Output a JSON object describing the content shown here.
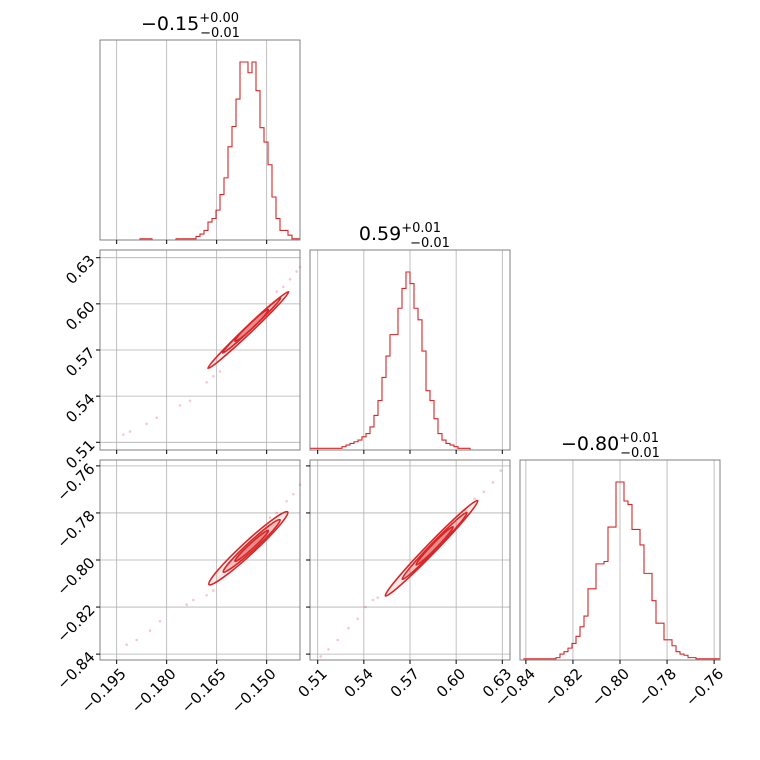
{
  "colors": {
    "line": "#d62728",
    "grid": "#b0b0b0",
    "frame": "#808080"
  },
  "chart_data": {
    "type": "corner",
    "parameters": [
      {
        "range": [
          -0.2,
          -0.14
        ],
        "ticks": [
          -0.195,
          -0.18,
          -0.165,
          -0.15
        ],
        "tick_labels": [
          "−0.195",
          "−0.180",
          "−0.165",
          "−0.150"
        ]
      },
      {
        "range": [
          0.505,
          0.635
        ],
        "ticks": [
          0.51,
          0.54,
          0.57,
          0.6,
          0.63
        ],
        "tick_labels": [
          "0.51",
          "0.54",
          "0.57",
          "0.60",
          "0.63"
        ]
      },
      {
        "range": [
          -0.8425,
          -0.7575
        ],
        "ticks": [
          -0.84,
          -0.82,
          -0.8,
          -0.78,
          -0.76
        ],
        "tick_labels": [
          "−0.84",
          "−0.82",
          "−0.80",
          "−0.78",
          "−0.76"
        ]
      }
    ],
    "titles": [
      {
        "value": "−0.15",
        "upper": "+0.00",
        "lower": "−0.01"
      },
      {
        "value": "0.59",
        "upper": "+0.01",
        "lower": "−0.01"
      },
      {
        "value": "−0.80",
        "upper": "+0.01",
        "lower": "−0.01"
      }
    ],
    "histograms": [
      {
        "param": 0,
        "edges_start": -0.2,
        "bin_width": 0.0012,
        "counts": [
          0,
          0,
          0,
          0,
          0,
          0,
          0,
          0,
          0,
          0,
          1,
          1,
          1,
          0,
          0,
          0,
          0,
          0,
          0,
          1,
          1,
          1,
          1,
          1,
          3,
          5,
          8,
          15,
          18,
          25,
          38,
          52,
          78,
          95,
          118,
          149,
          149,
          140,
          149,
          125,
          94,
          82,
          63,
          36,
          18,
          8,
          8,
          4,
          1,
          1
        ]
      },
      {
        "param": 1,
        "edges_start": 0.505,
        "bin_width": 0.0026,
        "counts": [
          1,
          1,
          1,
          1,
          1,
          1,
          1,
          1,
          2,
          3,
          4,
          5,
          6,
          8,
          10,
          14,
          21,
          30,
          44,
          57,
          70,
          70,
          86,
          98,
          108,
          101,
          86,
          79,
          60,
          36,
          30,
          19,
          10,
          6,
          4,
          3,
          2,
          1,
          1,
          1,
          0,
          0,
          0,
          0,
          0,
          0,
          0,
          0,
          0,
          0
        ]
      },
      {
        "param": 2,
        "edges_start": -0.8425,
        "bin_width": 0.0017,
        "counts": [
          0,
          1,
          1,
          1,
          1,
          1,
          1,
          1,
          1,
          2,
          5,
          7,
          10,
          14,
          20,
          28,
          37,
          60,
          60,
          81,
          81,
          83,
          112,
          112,
          150,
          150,
          134,
          131,
          110,
          110,
          97,
          73,
          73,
          50,
          31,
          31,
          17,
          17,
          12,
          7,
          5,
          4,
          2,
          2,
          1,
          1,
          1,
          1,
          1,
          1
        ]
      }
    ],
    "pairs": [
      {
        "x_param": 0,
        "y_param": 1,
        "points": [
          [
            -0.193,
            0.515
          ],
          [
            -0.191,
            0.517
          ],
          [
            -0.186,
            0.522
          ],
          [
            -0.183,
            0.526
          ],
          [
            -0.176,
            0.534
          ],
          [
            -0.173,
            0.537
          ],
          [
            -0.168,
            0.549
          ],
          [
            -0.166,
            0.553
          ],
          [
            -0.164,
            0.556
          ],
          [
            -0.147,
            0.608
          ],
          [
            -0.145,
            0.611
          ],
          [
            -0.143,
            0.616
          ],
          [
            -0.141,
            0.621
          ],
          [
            -0.14,
            0.624
          ]
        ],
        "contours": [
          {
            "cx": -0.1555,
            "cy": 0.583,
            "a": 0.0121,
            "b": 0.00075
          },
          {
            "cx": -0.1545,
            "cy": 0.586,
            "a": 0.0087,
            "b": 0.00045
          },
          {
            "cx": -0.1545,
            "cy": 0.586,
            "a": 0.005,
            "b": 0.00025
          }
        ]
      },
      {
        "x_param": 0,
        "y_param": 2,
        "points": [
          [
            -0.192,
            -0.836
          ],
          [
            -0.189,
            -0.834
          ],
          [
            -0.185,
            -0.83
          ],
          [
            -0.182,
            -0.826
          ],
          [
            -0.174,
            -0.819
          ],
          [
            -0.172,
            -0.817
          ],
          [
            -0.168,
            -0.815
          ],
          [
            -0.166,
            -0.813
          ],
          [
            -0.149,
            -0.782
          ],
          [
            -0.147,
            -0.78
          ],
          [
            -0.144,
            -0.775
          ],
          [
            -0.142,
            -0.772
          ],
          [
            -0.14,
            -0.768
          ]
        ],
        "contours": [
          {
            "cx": -0.1555,
            "cy": -0.795,
            "a": 0.0118,
            "b": 0.0009
          },
          {
            "cx": -0.1545,
            "cy": -0.794,
            "a": 0.0085,
            "b": 0.0006
          },
          {
            "cx": -0.1545,
            "cy": -0.794,
            "a": 0.005,
            "b": 0.0003
          }
        ]
      },
      {
        "x_param": 1,
        "y_param": 2,
        "points": [
          [
            0.512,
            -0.841
          ],
          [
            0.517,
            -0.838
          ],
          [
            0.523,
            -0.834
          ],
          [
            0.53,
            -0.829
          ],
          [
            0.536,
            -0.825
          ],
          [
            0.541,
            -0.82
          ],
          [
            0.546,
            -0.817
          ],
          [
            0.549,
            -0.816
          ],
          [
            0.606,
            -0.779
          ],
          [
            0.612,
            -0.774
          ],
          [
            0.618,
            -0.771
          ],
          [
            0.624,
            -0.767
          ],
          [
            0.629,
            -0.762
          ]
        ],
        "contours": [
          {
            "cx": 0.584,
            "cy": -0.795,
            "a": 0.03,
            "b": 0.0007
          },
          {
            "cx": 0.586,
            "cy": -0.794,
            "a": 0.021,
            "b": 0.0005
          },
          {
            "cx": 0.586,
            "cy": -0.794,
            "a": 0.012,
            "b": 0.0003
          }
        ]
      }
    ]
  }
}
